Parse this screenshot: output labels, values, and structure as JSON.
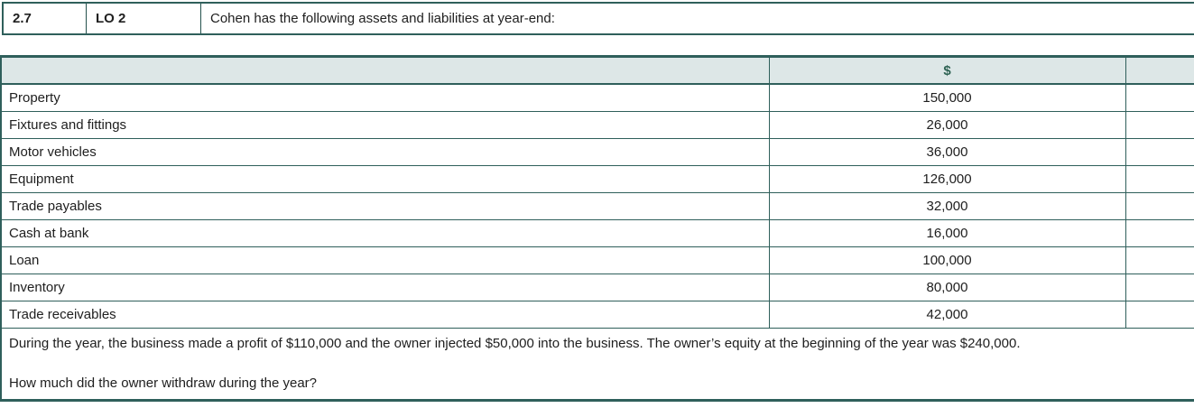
{
  "exercise_header": {
    "number": "2.7",
    "lo_badge": "LO 2",
    "prompt": "Cohen has the following assets and liabilities at year-end:"
  },
  "table": {
    "amount_column_header": "$",
    "rows": [
      {
        "label": "Property",
        "amount": "150,000"
      },
      {
        "label": "Fixtures and fittings",
        "amount": "26,000"
      },
      {
        "label": "Motor vehicles",
        "amount": "36,000"
      },
      {
        "label": "Equipment",
        "amount": "126,000"
      },
      {
        "label": "Trade payables",
        "amount": "32,000"
      },
      {
        "label": "Cash at bank",
        "amount": "16,000"
      },
      {
        "label": "Loan",
        "amount": "100,000"
      },
      {
        "label": "Inventory",
        "amount": "80,000"
      },
      {
        "label": "Trade receivables",
        "amount": "42,000"
      }
    ]
  },
  "footer": {
    "note": "During the year, the business made a profit of $110,000 and the owner injected $50,000 into the business. The owner’s equity at the beginning of the year was $240,000.",
    "question": "How much did the owner withdraw during the year?"
  },
  "colors": {
    "border_teal": "#2f5f5b",
    "header_row_background": "#dde7e7",
    "dollar_header_green": "#2e6354",
    "body_text": "#202020"
  }
}
